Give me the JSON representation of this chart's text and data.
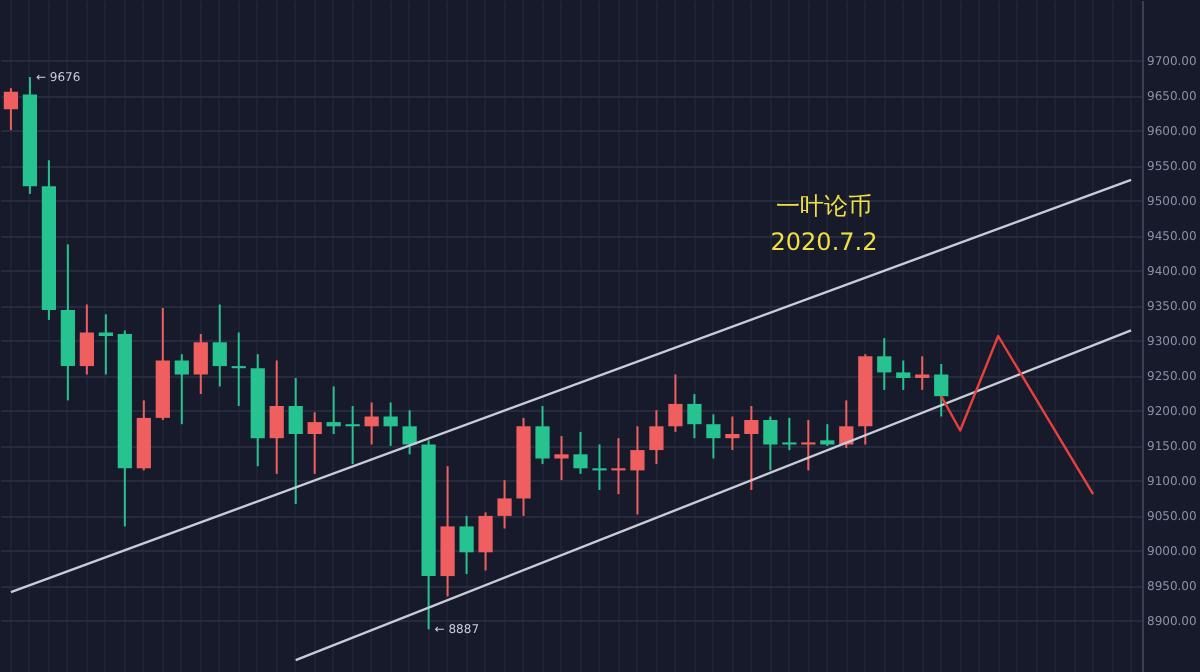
{
  "chart_data": {
    "type": "candlestick",
    "categories": [
      null,
      null,
      null,
      null,
      null,
      null,
      null,
      null,
      null,
      null,
      null,
      null,
      null,
      null,
      null,
      null,
      null,
      null,
      null,
      null,
      null,
      null,
      null,
      null,
      null,
      null,
      null,
      null,
      null,
      null,
      null,
      null,
      null,
      null,
      null,
      null,
      null,
      null,
      null,
      null,
      null,
      null,
      null,
      null,
      null,
      null,
      null,
      null,
      null,
      null,
      null,
      null,
      null,
      null,
      null,
      null,
      null,
      null,
      null,
      null
    ],
    "ohlc": [
      [
        9630,
        9660,
        9600,
        9655
      ],
      [
        9651,
        9676,
        9509,
        9520
      ],
      [
        9520,
        9557,
        9329,
        9343
      ],
      [
        9343,
        9437,
        9214,
        9263
      ],
      [
        9263,
        9351,
        9251,
        9311
      ],
      [
        9311,
        9337,
        9251,
        9306
      ],
      [
        9309,
        9314,
        9034,
        9117
      ],
      [
        9117,
        9214,
        9114,
        9189
      ],
      [
        9189,
        9346,
        9186,
        9271
      ],
      [
        9271,
        9280,
        9180,
        9251
      ],
      [
        9251,
        9309,
        9223,
        9297
      ],
      [
        9297,
        9351,
        9234,
        9263
      ],
      [
        9263,
        9311,
        9206,
        9260
      ],
      [
        9260,
        9280,
        9120,
        9160
      ],
      [
        9160,
        9271,
        9109,
        9206
      ],
      [
        9206,
        9246,
        9066,
        9166
      ],
      [
        9166,
        9197,
        9109,
        9183
      ],
      [
        9183,
        9234,
        9166,
        9177
      ],
      [
        9180,
        9206,
        9123,
        9177
      ],
      [
        9177,
        9211,
        9151,
        9191
      ],
      [
        9191,
        9211,
        9149,
        9177
      ],
      [
        9177,
        9200,
        9137,
        9151
      ],
      [
        9151,
        9157,
        8887,
        8963
      ],
      [
        8963,
        9120,
        8934,
        9034
      ],
      [
        9034,
        9049,
        8966,
        8997
      ],
      [
        8997,
        9054,
        8971,
        9049
      ],
      [
        9049,
        9100,
        9031,
        9074
      ],
      [
        9074,
        9189,
        9049,
        9177
      ],
      [
        9177,
        9206,
        9123,
        9131
      ],
      [
        9131,
        9163,
        9100,
        9137
      ],
      [
        9137,
        9169,
        9109,
        9117
      ],
      [
        9117,
        9151,
        9086,
        9114
      ],
      [
        9114,
        9160,
        9080,
        9117
      ],
      [
        9114,
        9177,
        9051,
        9143
      ],
      [
        9143,
        9200,
        9123,
        9177
      ],
      [
        9177,
        9251,
        9169,
        9209
      ],
      [
        9209,
        9223,
        9160,
        9180
      ],
      [
        9180,
        9194,
        9131,
        9160
      ],
      [
        9160,
        9191,
        9143,
        9166
      ],
      [
        9166,
        9206,
        9086,
        9186
      ],
      [
        9186,
        9191,
        9114,
        9151
      ],
      [
        9154,
        9189,
        9143,
        9151
      ],
      [
        9151,
        9186,
        9114,
        9154
      ],
      [
        9157,
        9180,
        9149,
        9151
      ],
      [
        9151,
        9214,
        9146,
        9177
      ],
      [
        9177,
        9280,
        9151,
        9277
      ],
      [
        9277,
        9303,
        9229,
        9254
      ],
      [
        9254,
        9271,
        9229,
        9246
      ],
      [
        9246,
        9277,
        9229,
        9251
      ],
      [
        9251,
        9266,
        9191,
        9220
      ],
      null,
      null,
      null,
      null,
      null,
      null,
      null,
      null,
      null,
      null
    ],
    "colors": [
      "#ef5f5f",
      "#26c28f",
      "#26c28f",
      "#26c28f",
      "#ef5f5f",
      "#26c28f",
      "#26c28f",
      "#ef5f5f",
      "#ef5f5f",
      "#26c28f",
      "#ef5f5f",
      "#26c28f",
      "#26c28f",
      "#26c28f",
      "#ef5f5f",
      "#26c28f",
      "#ef5f5f",
      "#26c28f",
      "#26c28f",
      "#ef5f5f",
      "#26c28f",
      "#26c28f",
      "#26c28f",
      "#ef5f5f",
      "#26c28f",
      "#ef5f5f",
      "#ef5f5f",
      "#ef5f5f",
      "#26c28f",
      "#ef5f5f",
      "#26c28f",
      "#26c28f",
      "#ef5f5f",
      "#ef5f5f",
      "#ef5f5f",
      "#ef5f5f",
      "#26c28f",
      "#26c28f",
      "#ef5f5f",
      "#ef5f5f",
      "#26c28f",
      "#26c28f",
      "#ef5f5f",
      "#26c28f",
      "#ef5f5f",
      "#ef5f5f",
      "#26c28f",
      "#26c28f",
      "#ef5f5f",
      "#26c28f",
      null,
      null,
      null,
      null,
      null,
      null,
      null,
      null,
      null,
      null
    ],
    "series": [
      {
        "type": "line",
        "color": "#c8ccd8",
        "values": [
          8940,
          null,
          null,
          null,
          null,
          null,
          null,
          null,
          null,
          null,
          null,
          null,
          null,
          null,
          null,
          null,
          null,
          null,
          null,
          null,
          null,
          null,
          null,
          null,
          null,
          null,
          null,
          null,
          null,
          null,
          null,
          null,
          null,
          null,
          null,
          null,
          null,
          null,
          null,
          null,
          null,
          null,
          null,
          null,
          null,
          null,
          null,
          null,
          null,
          null,
          null,
          null,
          null,
          null,
          null,
          null,
          null,
          null,
          null,
          9529
        ]
      },
      {
        "type": "line",
        "color": "#c8ccd8",
        "values": [
          null,
          null,
          null,
          null,
          null,
          null,
          null,
          null,
          null,
          null,
          null,
          null,
          null,
          null,
          null,
          8843,
          null,
          null,
          null,
          null,
          null,
          null,
          null,
          null,
          null,
          null,
          null,
          null,
          null,
          null,
          null,
          null,
          null,
          null,
          null,
          null,
          null,
          null,
          null,
          null,
          null,
          null,
          null,
          null,
          null,
          null,
          null,
          null,
          null,
          null,
          null,
          null,
          null,
          null,
          null,
          null,
          null,
          null,
          null,
          9314
        ]
      },
      {
        "type": "line",
        "color": "#e8413d",
        "values": [
          null,
          null,
          null,
          null,
          null,
          null,
          null,
          null,
          null,
          null,
          null,
          null,
          null,
          null,
          null,
          null,
          null,
          null,
          null,
          null,
          null,
          null,
          null,
          null,
          null,
          null,
          null,
          null,
          null,
          null,
          null,
          null,
          null,
          null,
          null,
          null,
          null,
          null,
          null,
          null,
          null,
          null,
          null,
          null,
          null,
          null,
          null,
          null,
          null,
          9220,
          9171,
          null,
          9306,
          null,
          null,
          null,
          null,
          9080,
          null,
          null
        ]
      }
    ],
    "ylim": [
      8826,
      9786
    ],
    "yticks": [
      {
        "value": 8900,
        "label": "8900.00"
      },
      {
        "value": 8950,
        "label": "8950.00"
      },
      {
        "value": 9000,
        "label": "9000.00"
      },
      {
        "value": 9050,
        "label": "9050.00"
      },
      {
        "value": 9100,
        "label": "9100.00"
      },
      {
        "value": 9150,
        "label": "9150.00"
      },
      {
        "value": 9200,
        "label": "9200.00"
      },
      {
        "value": 9250,
        "label": "9250.00"
      },
      {
        "value": 9300,
        "label": "9300.00"
      },
      {
        "value": 9350,
        "label": "9350.00"
      },
      {
        "value": 9400,
        "label": "9400.00"
      },
      {
        "value": 9450,
        "label": "9450.00"
      },
      {
        "value": 9500,
        "label": "9500.00"
      },
      {
        "value": 9550,
        "label": "9550.00"
      },
      {
        "value": 9600,
        "label": "9600.00"
      },
      {
        "value": 9650,
        "label": "9650.00"
      },
      {
        "value": 9700,
        "label": "9700.00"
      }
    ],
    "grid": true,
    "tick_labels": "y",
    "annotations": [
      "一叶论币",
      "2020.7.2",
      "← 9676",
      "← 8887"
    ]
  }
}
